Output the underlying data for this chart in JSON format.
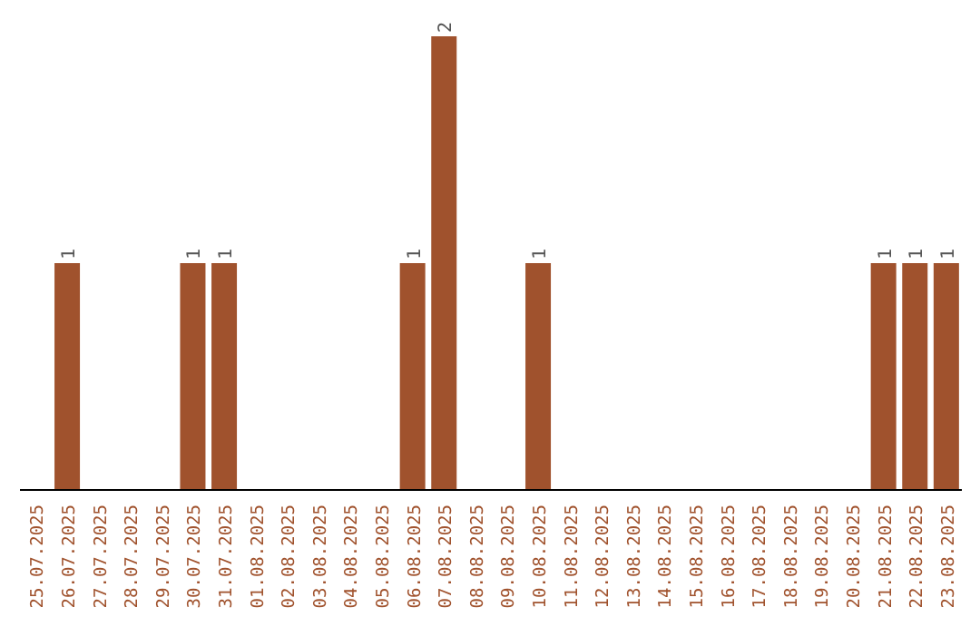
{
  "chart_data": {
    "type": "bar",
    "categories": [
      "25.07.2025",
      "26.07.2025",
      "27.07.2025",
      "28.07.2025",
      "29.07.2025",
      "30.07.2025",
      "31.07.2025",
      "01.08.2025",
      "02.08.2025",
      "03.08.2025",
      "04.08.2025",
      "05.08.2025",
      "06.08.2025",
      "07.08.2025",
      "08.08.2025",
      "09.08.2025",
      "10.08.2025",
      "11.08.2025",
      "12.08.2025",
      "13.08.2025",
      "14.08.2025",
      "15.08.2025",
      "16.08.2025",
      "17.08.2025",
      "18.08.2025",
      "19.08.2025",
      "20.08.2025",
      "21.08.2025",
      "22.08.2025",
      "23.08.2025"
    ],
    "values": [
      0,
      1,
      0,
      0,
      0,
      1,
      1,
      0,
      0,
      0,
      0,
      0,
      1,
      2,
      0,
      0,
      1,
      0,
      0,
      0,
      0,
      0,
      0,
      0,
      0,
      0,
      0,
      1,
      1,
      1
    ],
    "value_labels": [
      null,
      "1",
      null,
      null,
      null,
      "1",
      "1",
      null,
      null,
      null,
      null,
      null,
      "1",
      "2",
      null,
      null,
      "1",
      null,
      null,
      null,
      null,
      null,
      null,
      null,
      null,
      null,
      null,
      "1",
      "1",
      "1"
    ],
    "color": "#a0522d"
  }
}
